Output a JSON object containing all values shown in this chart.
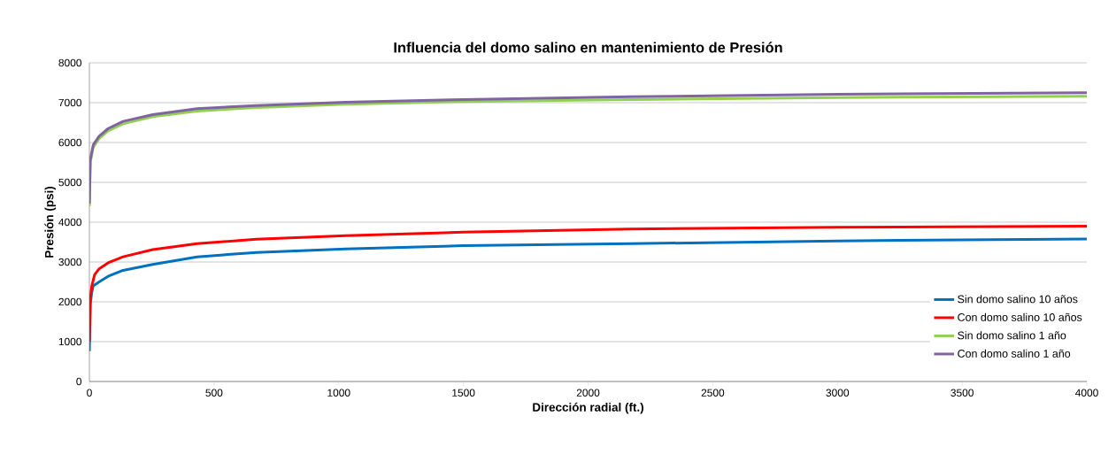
{
  "chart_data": {
    "type": "line",
    "title": "Influencia del domo salino en mantenimiento de Presión",
    "xlabel": "Dirección radial (ft.)",
    "ylabel": "Presión (psi)",
    "xlim": [
      0,
      4000
    ],
    "xticks": [
      0,
      500,
      1000,
      1500,
      2000,
      2500,
      3000,
      3500,
      4000
    ],
    "ylim": [
      0,
      8000
    ],
    "yticks": [
      0,
      1000,
      2000,
      3000,
      4000,
      5000,
      6000,
      7000,
      8000
    ],
    "grid": "y",
    "legend": "bottom right",
    "marker": "none",
    "line_style": "solid",
    "series": [
      {
        "name": "Sin domo salino 10 años",
        "color": "#0070c0",
        "x": [
          0,
          3.6,
          9.5,
          15.5,
          39,
          75,
          135,
          254,
          432,
          670,
          1027,
          1500,
          2170,
          3000,
          4000
        ],
        "values": [
          760,
          1940,
          2240,
          2400,
          2500,
          2640,
          2790,
          2940,
          3130,
          3240,
          3330,
          3410,
          3460,
          3530,
          3580
        ]
      },
      {
        "name": "Con domo salino 10 años",
        "color": "#ff0000",
        "x": [
          0,
          3.6,
          9.5,
          21,
          39,
          75,
          135,
          254,
          432,
          670,
          1027,
          1500,
          2170,
          3000,
          4000
        ],
        "values": [
          1000,
          2090,
          2390,
          2680,
          2830,
          2980,
          3130,
          3310,
          3460,
          3570,
          3660,
          3750,
          3830,
          3870,
          3900
        ]
      },
      {
        "name": "Sin domo salino 1 año",
        "color": "#92d050",
        "x": [
          0,
          3.6,
          15.5,
          39,
          75,
          135,
          254,
          432,
          670,
          1027,
          1500,
          2170,
          3000,
          4000
        ],
        "values": [
          4400,
          5500,
          5880,
          6100,
          6290,
          6470,
          6650,
          6790,
          6880,
          6960,
          7030,
          7080,
          7130,
          7160
        ]
      },
      {
        "name": "Con domo salino 1 año",
        "color": "#8064a2",
        "x": [
          0,
          3.6,
          15.5,
          39,
          75,
          135,
          254,
          432,
          670,
          1027,
          1500,
          2170,
          3000,
          4000
        ],
        "values": [
          4460,
          5570,
          5940,
          6160,
          6350,
          6530,
          6700,
          6850,
          6930,
          7010,
          7080,
          7150,
          7210,
          7250
        ]
      }
    ]
  }
}
